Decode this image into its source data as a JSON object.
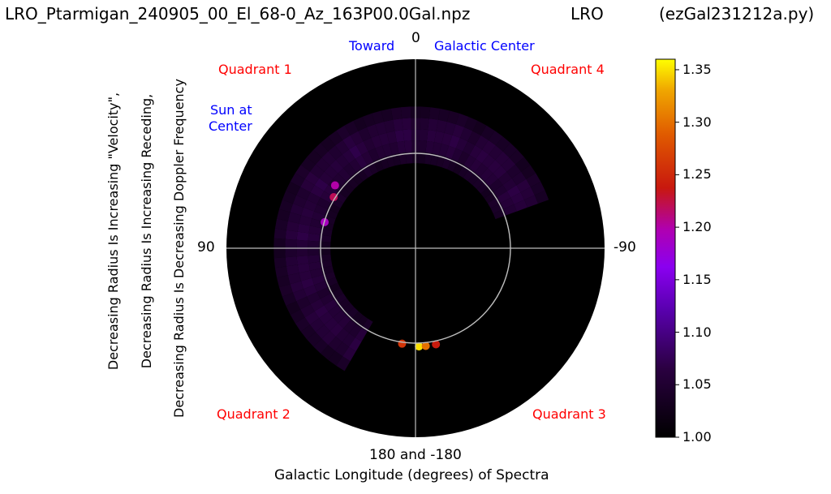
{
  "header": {
    "filename": "LRO_Ptarmigan_240905_00_El_68-0_Az_163P00.0Gal.npz",
    "station": "LRO",
    "script": "(ezGal231212a.py)"
  },
  "chart_data": {
    "type": "heatmap",
    "projection": "polar",
    "title": "LRO_Ptarmigan_240905_00_El_68-0_Az_163P00.0Gal.npz",
    "angle_labels": {
      "top": "0",
      "left": "90",
      "right": "-90",
      "bottom": "180 and -180"
    },
    "xlabel": "Galactic Longitude (degrees) of Spectra",
    "ylabel_lines": [
      "Decreasing Radius Is Increasing \"Velocity\",",
      "Decreasing Radius Is Increasing Receding,",
      "Decreasing Radius Is Decreasing Doppler Frequency"
    ],
    "annotations": {
      "quadrant_1": "Quadrant 1",
      "quadrant_2": "Quadrant 2",
      "quadrant_3": "Quadrant 3",
      "quadrant_4": "Quadrant 4",
      "sun_line1": "Sun at",
      "sun_line2": "Center",
      "toward": "Toward",
      "galactic_center": "Galactic Center"
    },
    "colorbar": {
      "cmap": "gnuplot",
      "range": [
        1.0,
        1.36
      ],
      "ticks": [
        1.0,
        1.05,
        1.1,
        1.15,
        1.2,
        1.25,
        1.3,
        1.35
      ],
      "tick_labels": [
        "1.00",
        "1.05",
        "1.10",
        "1.15",
        "1.20",
        "1.25",
        "1.30",
        "1.35"
      ]
    },
    "reference_circle_radius_fraction": 0.5,
    "background_value": 1.0,
    "emission_arc": {
      "longitude_range_deg": [
        -70,
        150
      ],
      "radius_fraction_range": [
        0.45,
        0.75
      ],
      "typical_value": 1.07
    },
    "hotspots": [
      {
        "longitude_deg": 182,
        "radius_fraction": 0.52,
        "value": 1.35
      },
      {
        "longitude_deg": 186,
        "radius_fraction": 0.52,
        "value": 1.3
      },
      {
        "longitude_deg": 172,
        "radius_fraction": 0.51,
        "value": 1.26
      },
      {
        "longitude_deg": 192,
        "radius_fraction": 0.52,
        "value": 1.24
      },
      {
        "longitude_deg": 58,
        "radius_fraction": 0.51,
        "value": 1.22
      },
      {
        "longitude_deg": 52,
        "radius_fraction": 0.54,
        "value": 1.2
      },
      {
        "longitude_deg": 74,
        "radius_fraction": 0.5,
        "value": 1.19
      }
    ],
    "grid": true
  }
}
